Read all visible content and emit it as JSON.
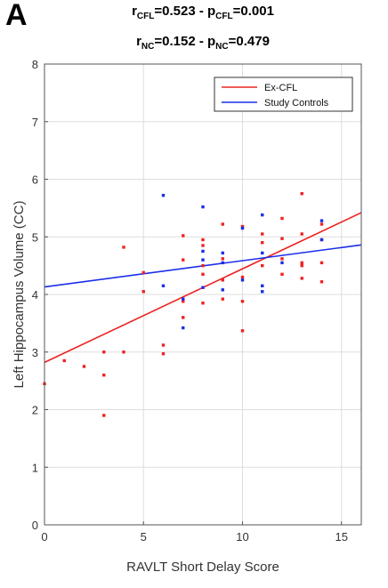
{
  "panel_label": "A",
  "stats": {
    "line1": {
      "r_sym": "r",
      "r_sub": "CFL",
      "r_val": "=0.523 - ",
      "p_sym": "p",
      "p_sub": "CFL",
      "p_val": "=0.001"
    },
    "line2": {
      "r_sym": "r",
      "r_sub": "NC",
      "r_val": "=0.152 - ",
      "p_sym": "p",
      "p_sub": "NC",
      "p_val": "=0.479"
    }
  },
  "colors": {
    "cfl": "#ee2222",
    "nc": "#1a2ee8",
    "grid": "#dddddd",
    "axis": "#555555"
  },
  "chart_data": {
    "type": "scatter",
    "xlabel": "RAVLT Short Delay Score",
    "ylabel": "Left Hippocampus Volume (CC)",
    "xlim": [
      0,
      16
    ],
    "ylim": [
      0,
      8
    ],
    "xticks": [
      0,
      5,
      10,
      15
    ],
    "yticks": [
      0,
      1,
      2,
      3,
      4,
      5,
      6,
      7,
      8
    ],
    "grid": true,
    "legend_position": "top-right",
    "series": [
      {
        "name": "Ex-CFL",
        "color": "#ee2222",
        "points": [
          [
            0,
            2.45
          ],
          [
            1,
            2.85
          ],
          [
            2,
            2.75
          ],
          [
            3,
            3.0
          ],
          [
            3,
            2.6
          ],
          [
            3,
            1.9
          ],
          [
            4,
            4.82
          ],
          [
            4,
            3.0
          ],
          [
            5,
            4.38
          ],
          [
            5,
            4.05
          ],
          [
            6,
            3.12
          ],
          [
            6,
            2.97
          ],
          [
            7,
            5.02
          ],
          [
            7,
            4.6
          ],
          [
            7,
            3.6
          ],
          [
            7,
            3.88
          ],
          [
            8,
            4.95
          ],
          [
            8,
            4.85
          ],
          [
            8,
            4.5
          ],
          [
            8,
            4.35
          ],
          [
            8,
            3.85
          ],
          [
            9,
            5.22
          ],
          [
            9,
            4.62
          ],
          [
            9,
            4.25
          ],
          [
            9,
            3.92
          ],
          [
            10,
            5.18
          ],
          [
            10,
            4.3
          ],
          [
            10,
            3.88
          ],
          [
            10,
            3.37
          ],
          [
            11,
            5.05
          ],
          [
            11,
            4.9
          ],
          [
            11,
            4.5
          ],
          [
            12,
            5.32
          ],
          [
            12,
            4.97
          ],
          [
            12,
            4.62
          ],
          [
            12,
            4.35
          ],
          [
            13,
            5.75
          ],
          [
            13,
            5.05
          ],
          [
            13,
            4.55
          ],
          [
            13,
            4.5
          ],
          [
            13,
            4.28
          ],
          [
            14,
            5.22
          ],
          [
            14,
            4.95
          ],
          [
            14,
            4.55
          ],
          [
            14,
            4.22
          ]
        ],
        "fit": [
          [
            0,
            2.82
          ],
          [
            16,
            5.42
          ]
        ]
      },
      {
        "name": "Study Controls",
        "color": "#1a2ee8",
        "points": [
          [
            6,
            5.72
          ],
          [
            6,
            4.15
          ],
          [
            7,
            3.92
          ],
          [
            7,
            3.42
          ],
          [
            8,
            5.52
          ],
          [
            8,
            4.75
          ],
          [
            8,
            4.6
          ],
          [
            8,
            4.12
          ],
          [
            9,
            4.72
          ],
          [
            9,
            4.55
          ],
          [
            9,
            4.08
          ],
          [
            10,
            5.15
          ],
          [
            10,
            4.25
          ],
          [
            11,
            5.38
          ],
          [
            11,
            4.72
          ],
          [
            11,
            4.15
          ],
          [
            11,
            4.05
          ],
          [
            12,
            4.55
          ],
          [
            14,
            5.28
          ],
          [
            14,
            4.95
          ]
        ],
        "fit": [
          [
            0,
            4.13
          ],
          [
            16,
            4.86
          ]
        ]
      }
    ]
  }
}
